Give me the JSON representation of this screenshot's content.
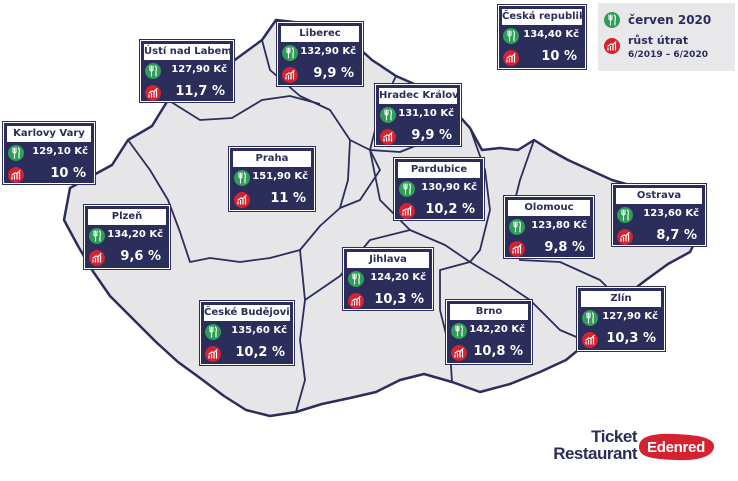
{
  "map": {
    "country": "Czech Republic",
    "colors": {
      "land": "#e6e6e8",
      "border": "#2b2d5b",
      "card": "#2b2d5b",
      "green": "#2e9e57",
      "red": "#d42230"
    }
  },
  "legend": {
    "price_label": "červen 2020",
    "growth_label_line1": "růst útrat",
    "growth_label_line2": "6/2019 – 6/2020"
  },
  "national": {
    "name": "Česká republika",
    "price": "134,40 Kč",
    "growth": "10 %"
  },
  "regions": [
    {
      "id": "usti",
      "name": "Ústí nad Labem",
      "price": "127,90 Kč",
      "growth": "11,7 %"
    },
    {
      "id": "liberec",
      "name": "Liberec",
      "price": "132,90 Kč",
      "growth": "9,9 %"
    },
    {
      "id": "hradec",
      "name": "Hradec Králové",
      "price": "131,10 Kč",
      "growth": "9,9 %"
    },
    {
      "id": "karlovy",
      "name": "Karlovy Vary",
      "price": "129,10 Kč",
      "growth": "10 %"
    },
    {
      "id": "praha",
      "name": "Praha",
      "price": "151,90 Kč",
      "growth": "11 %"
    },
    {
      "id": "pardubice",
      "name": "Pardubice",
      "price": "130,90 Kč",
      "growth": "10,2 %"
    },
    {
      "id": "plzen",
      "name": "Plzeň",
      "price": "134,20 Kč",
      "growth": "9,6 %"
    },
    {
      "id": "olomouc",
      "name": "Olomouc",
      "price": "123,80 Kč",
      "growth": "9,8 %"
    },
    {
      "id": "ostrava",
      "name": "Ostrava",
      "price": "123,60 Kč",
      "growth": "8,7 %"
    },
    {
      "id": "jihlava",
      "name": "Jihlava",
      "price": "124,20 Kč",
      "growth": "10,3 %"
    },
    {
      "id": "budejovice",
      "name": "České Budějovice",
      "price": "135,60 Kč",
      "growth": "10,2 %"
    },
    {
      "id": "brno",
      "name": "Brno",
      "price": "142,20 Kč",
      "growth": "10,8 %"
    },
    {
      "id": "zlin",
      "name": "Zlín",
      "price": "127,90 Kč",
      "growth": "10,3 %"
    }
  ],
  "logo": {
    "line1": "Ticket",
    "line2": "Restaurant",
    "brand": "Edenred"
  }
}
